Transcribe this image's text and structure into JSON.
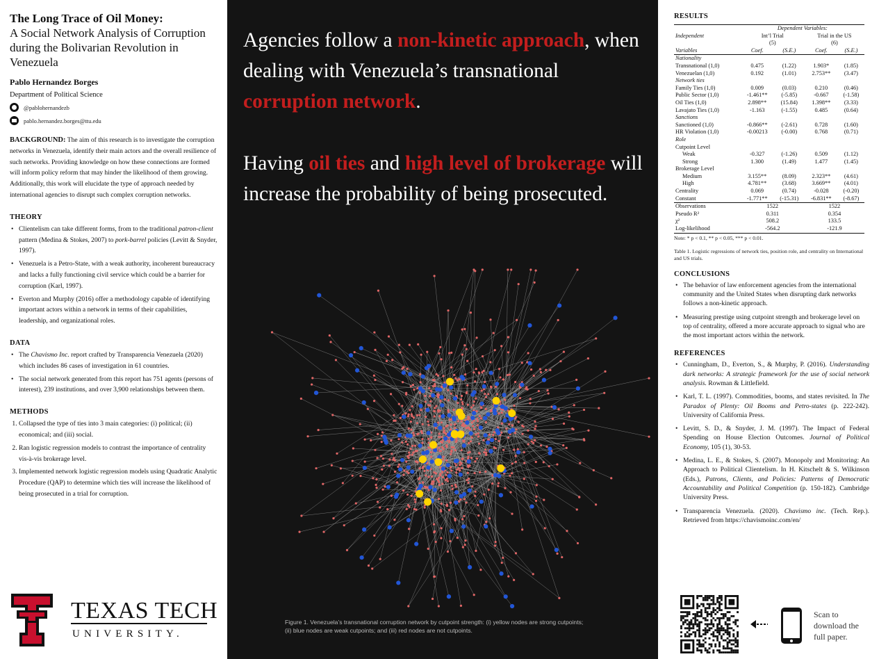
{
  "left": {
    "title_bold": "The Long Trace of Oil Money:",
    "title_rest": "A Social Network Analysis of Corruption during the Bolivarian Revolution in Venezuela",
    "author": "Pablo Hernandez Borges",
    "department": "Department of Political Science",
    "github": "@pablohernandezb",
    "email": "pablo.hernandez.borges@ttu.edu",
    "background_head": "BACKGROUND:",
    "background_text": " The aim of this research is to investigate the corruption networks in Venezuela, identify their main actors and the overall resilience of such networks. Providing knowledge on how these connections are formed will inform policy reform that may hinder the likelihood of them growing. Additionally, this work will elucidate the type of approach needed by international agencies to disrupt such complex corruption networks.",
    "theory_head": "THEORY",
    "theory": [
      {
        "a": "Clientelism can take different forms, from to the traditional ",
        "i": "patron-client",
        "b": " pattern (Medina & Stokes, 2007) to ",
        "i2": "pork-barrel",
        "c": " policies (Levitt & Snyder, 1997)."
      },
      {
        "a": "Venezuela is a Petro-State, with a weak authority, incoherent bureaucracy and lacks a fully functioning civil service which could be a barrier for corruption (Karl, 1997)."
      },
      {
        "a": "Everton and Murphy (2016) offer a methodology capable of identifying important actors within a network in terms of their capabilities, leadership, and organizational roles."
      }
    ],
    "data_head": "DATA",
    "data": [
      {
        "a": "The ",
        "i": "Chavismo Inc.",
        "b": " report crafted by Transparencia Venezuela (2020) which includes 86 cases of investigation in 61 countries."
      },
      {
        "a": "The social network generated from this report has 751 agents (persons of interest), 239 institutions, and over 3,900 relationships between them."
      }
    ],
    "methods_head": "METHODS",
    "methods": [
      "Collapsed the type of ties into 3 main categories: (i) political; (ii) economical; and (iii) social.",
      "Ran logistic regression models to contrast the importance of centrality vis-à-vis brokerage level.",
      "Implemented network logistic regression models using Quadratic Analytic Procedure (QAP) to determine which ties will increase the likelihood of being prosecuted in a trial for corruption."
    ],
    "logo_line1": "TEXAS TECH",
    "logo_line2": "UNIVERSITY."
  },
  "middle": {
    "claim1": {
      "p1": "Agencies follow a ",
      "r1": "non-kinetic approach",
      "p2": ", when dealing with Venezuela’s transnational ",
      "r2": "corruption network",
      "p3": "."
    },
    "claim2": {
      "p1": "Having ",
      "r1": "oil ties",
      "p2": " and ",
      "r2": "high level of brokerage",
      "p3": " will increase the probability of being prosecuted."
    },
    "figure_caption": "Figure 1. Venezuela’s transnational corruption network by cutpoint strength: (i) yellow nodes are strong cutpoints; (ii) blue nodes are weak cutpoints; and (iii) red nodes are not cutpoints.",
    "node_colors": {
      "strong": "#ffd400",
      "weak": "#2256d6",
      "none": "#e06666",
      "edge": "#9a9a9a"
    }
  },
  "right": {
    "results_head": "RESULTS",
    "table": {
      "dep_vars": "Dependent Variables:",
      "col_group1": "Int’l Trial",
      "col_group1_num": "(5)",
      "col_group2": "Trial in the US",
      "col_group2_num": "(6)",
      "indep": "Independent",
      "variables": "Variables",
      "coef": "Coef.",
      "se": "(S.E.)",
      "rows": [
        {
          "cat": "Nationality"
        },
        {
          "label": "Transnational (1,0)",
          "v": [
            "0.475",
            "(1.22)",
            "1.903*",
            "(1.85)"
          ]
        },
        {
          "label": "Venezuelan (1,0)",
          "v": [
            "0.192",
            "(1.01)",
            "2.753**",
            "(3.47)"
          ]
        },
        {
          "cat": "Network ties"
        },
        {
          "label": "Family Ties (1,0)",
          "v": [
            "0.009",
            "(0.03)",
            "0.210",
            "(0.46)"
          ]
        },
        {
          "label": "Public Sector (1,0)",
          "v": [
            "-1.461**",
            "(-5.85)",
            "-0.667",
            "(-1.58)"
          ]
        },
        {
          "label": "Oil Ties (1,0)",
          "v": [
            "2.898**",
            "(15.84)",
            "1.398**",
            "(3.33)"
          ]
        },
        {
          "label": "Lavajato Ties (1,0)",
          "v": [
            "-1.163",
            "(-1.55)",
            "0.485",
            "(0.64)"
          ]
        },
        {
          "cat": "Sanctions"
        },
        {
          "label": "Sanctioned (1,0)",
          "v": [
            "-0.866**",
            "(-2.61)",
            "0.728",
            "(1.60)"
          ]
        },
        {
          "label": "HR Violation (1,0)",
          "v": [
            "-0.00213",
            "(-0.00)",
            "0.768",
            "(0.71)"
          ]
        },
        {
          "cat": "Role"
        },
        {
          "label": "Cutpoint Level",
          "v": [
            "",
            "",
            "",
            ""
          ]
        },
        {
          "label": "Weak",
          "ind": true,
          "v": [
            "-0.327",
            "(-1.26)",
            "0.509",
            "(1.12)"
          ]
        },
        {
          "label": "Strong",
          "ind": true,
          "v": [
            "1.300",
            "(1.49)",
            "1.477",
            "(1.45)"
          ]
        },
        {
          "label": "Brokerage Level",
          "v": [
            "",
            "",
            "",
            ""
          ]
        },
        {
          "label": "Medium",
          "ind": true,
          "v": [
            "3.155**",
            "(8.09)",
            "2.323**",
            "(4.61)"
          ]
        },
        {
          "label": "High",
          "ind": true,
          "v": [
            "4.781**",
            "(3.68)",
            "3.669**",
            "(4.01)"
          ]
        },
        {
          "label": "Centrality",
          "v": [
            "0.069",
            "(0.74)",
            "-0.028",
            "(-0.20)"
          ]
        },
        {
          "label": "Constant",
          "v": [
            "-1.771**",
            "(-15.31)",
            "-6.831**",
            "(-8.67)"
          ]
        }
      ],
      "stats": [
        {
          "label": "Observations",
          "a": "1522",
          "b": "1522"
        },
        {
          "label": "Pseudo R²",
          "a": "0.311",
          "b": "0.354"
        },
        {
          "label": "χ²",
          "a": "508.2",
          "b": "133.5"
        },
        {
          "label": "Log-likelihood",
          "a": "-564.2",
          "b": "-121.9"
        }
      ],
      "note": "Note: * p < 0.1, ** p < 0.05, *** p < 0.01."
    },
    "table_caption": "Table 1. Logistic regressions of network ties, position role, and centrality on International and US trials.",
    "conclusions_head": "CONCLUSIONS",
    "conclusions": [
      "The behavior of law enforcement agencies from the international community and the United States when disrupting dark networks follows a non-kinetic approach.",
      "Measuring prestige using cutpoint strength and brokerage level on top of centrality, offered a more accurate approach to signal who are the most important actors within the network."
    ],
    "references_head": "REFERENCES",
    "references": [
      {
        "a": "Cunningham, D., Everton, S., & Murphy, P. (2016). ",
        "i": "Understanding dark networks: A strategic framework for the use of social network analysis.",
        "b": " Rowman & Littlefield."
      },
      {
        "a": "Karl, T. L. (1997). Commodities, booms, and states revisited. In ",
        "i": "The Paradox of Plenty: Oil Booms and Petro-states",
        "b": " (p. 222-242). University of California Press."
      },
      {
        "a": "Levitt, S. D., & Snyder, J. M. (1997). The Impact of Federal Spending on House Election Outcomes. ",
        "i": "Journal of Political Economy,",
        "b": " 105 (1), 30-53."
      },
      {
        "a": "Medina, L. E., & Stokes, S. (2007). Monopoly and Monitoring: An Approach to Political Clientelism. In H. Kitschelt & S. Wilkinson (Eds.), ",
        "i": "Patrons, Clients, and Policies: Patterns of Democratic Accountability and Political Competition",
        "b": " (p. 150-182). Cambridge University Press."
      },
      {
        "a": "Transparencia Venezuela. (2020). ",
        "i": "Chavismo inc.",
        "b": " (Tech. Rep.). Retrieved from https://chavismoinc.com/en/"
      }
    ],
    "scan_text": "Scan to download the full paper."
  }
}
